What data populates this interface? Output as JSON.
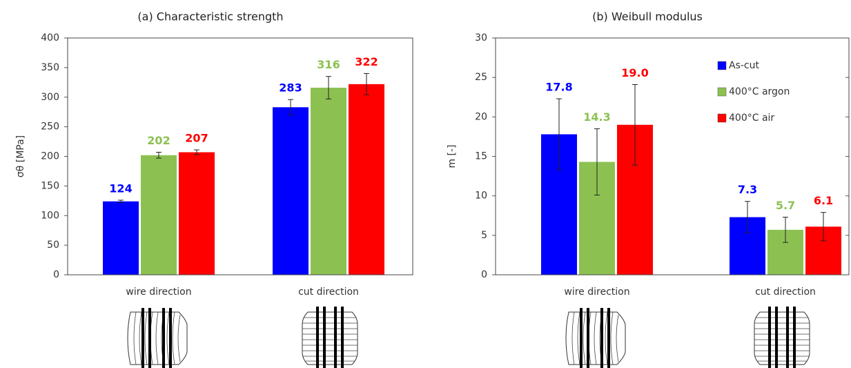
{
  "chart_data": [
    {
      "type": "bar",
      "title": "(a) Characteristic strength",
      "ylabel": "σθ [MPa]",
      "categories": [
        "wire direction",
        "cut direction"
      ],
      "series": [
        {
          "color": "#0000ff",
          "values": [
            124,
            283
          ],
          "errors": [
            2,
            13
          ]
        },
        {
          "color": "#8cc152",
          "values": [
            202,
            316
          ],
          "errors": [
            5,
            19
          ]
        },
        {
          "color": "#ff0000",
          "values": [
            207,
            322
          ],
          "errors": [
            4,
            18
          ]
        }
      ],
      "ylim": [
        0,
        400
      ],
      "yticks": [
        0,
        50,
        100,
        150,
        200,
        250,
        300,
        350,
        400
      ]
    },
    {
      "type": "bar",
      "title": "(b) Weibull modulus",
      "ylabel": "m [-]",
      "categories": [
        "wire direction",
        "cut direction"
      ],
      "series": [
        {
          "name": "As-cut",
          "color": "#0000ff",
          "values": [
            17.8,
            7.3
          ],
          "value_labels": [
            "17.8",
            "7.3"
          ],
          "errors": [
            4.5,
            2
          ]
        },
        {
          "name": "400°C argon",
          "color": "#8cc152",
          "values": [
            14.3,
            5.7
          ],
          "value_labels": [
            "14.3",
            "5.7"
          ],
          "errors": [
            4.2,
            1.6
          ]
        },
        {
          "name": "400°C air",
          "color": "#ff0000",
          "values": [
            19,
            6.1
          ],
          "value_labels": [
            "19.0",
            "6.1"
          ],
          "errors": [
            5.1,
            1.8
          ]
        }
      ],
      "ylim": [
        0,
        30
      ],
      "yticks": [
        0,
        5,
        10,
        15,
        20,
        25,
        30
      ],
      "legend": "upper right"
    }
  ]
}
